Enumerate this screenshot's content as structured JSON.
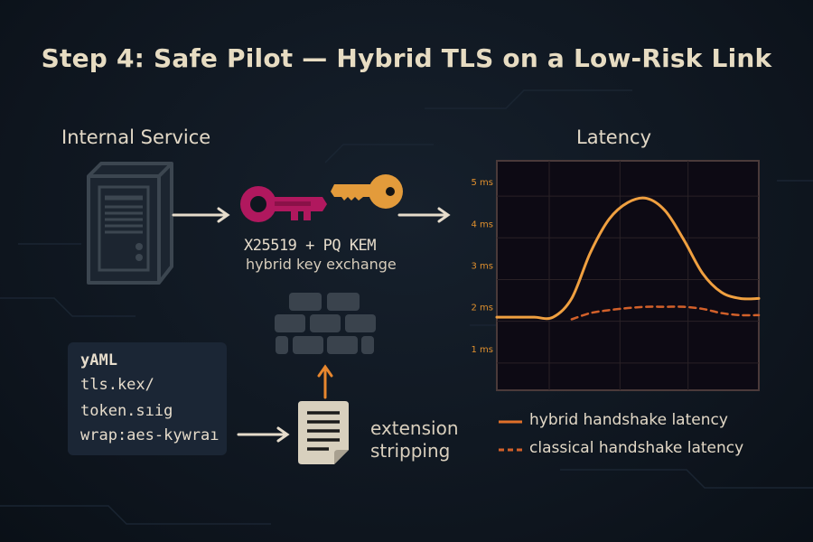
{
  "title": "Step 4: Safe Pilot — Hybrid TLS on a Low-Risk Link",
  "internal_service": {
    "label": "Internal Service",
    "icon": "server-icon"
  },
  "key_exchange": {
    "line1": "X25519 + PQ KEM",
    "line2": "hybrid key exchange",
    "icons": [
      "magenta-key-icon",
      "gold-key-icon"
    ],
    "colors": {
      "pq_key": "#b0185e",
      "classical_key": "#e39b3b"
    }
  },
  "firewall": {
    "icon": "brick-wall-icon"
  },
  "config": {
    "lines": [
      "yAML",
      "tls.kex/",
      "token.sıig",
      "wrap:aes-kywraı"
    ]
  },
  "extension_stripping": {
    "line1": "extension",
    "line2": "stripping",
    "icon": "document-icon"
  },
  "latency": {
    "label": "Latency"
  },
  "chart_data": {
    "type": "line",
    "title": "Latency",
    "xlabel": "",
    "ylabel": "",
    "y_ticks": [
      "1 ms",
      "2 ms",
      "3 ms",
      "4 ms",
      "5 ms"
    ],
    "ylim": [
      0,
      5.5
    ],
    "grid": true,
    "legend_placement": "bottom",
    "x": [
      0,
      1,
      2,
      3,
      4,
      5,
      6,
      7,
      8,
      9,
      10,
      11,
      12,
      13,
      14
    ],
    "series": [
      {
        "name": "hybrid handshake latency",
        "style": "solid",
        "color": "#f0a040",
        "values": [
          1.75,
          1.75,
          1.75,
          1.75,
          2.2,
          3.3,
          4.1,
          4.5,
          4.6,
          4.3,
          3.6,
          2.8,
          2.35,
          2.2,
          2.2
        ]
      },
      {
        "name": "classical handshake latency",
        "style": "dashed",
        "color": "#d2602a",
        "values": [
          null,
          null,
          null,
          null,
          1.7,
          1.85,
          1.92,
          1.97,
          2.0,
          2.0,
          2.0,
          1.95,
          1.85,
          1.8,
          1.8
        ]
      }
    ]
  }
}
